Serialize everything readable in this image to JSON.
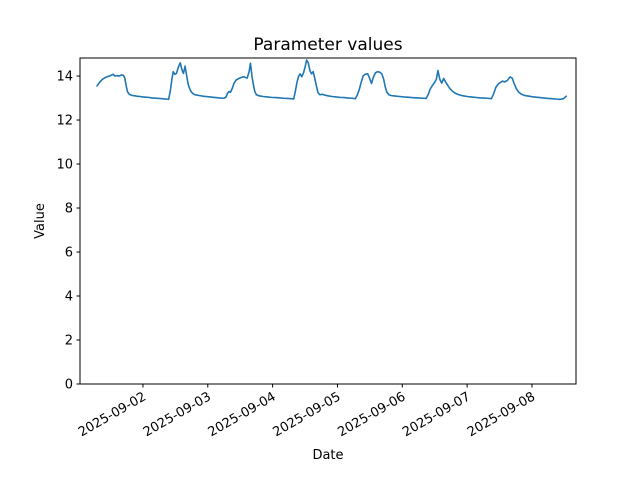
{
  "chart_data": {
    "type": "line",
    "title": "Parameter values",
    "xlabel": "Date",
    "ylabel": "Value",
    "legend": "none",
    "grid": false,
    "background_color": "#ffffff",
    "line_color": "#1f77b4",
    "axis_color": "#000000",
    "x_unit": "hours since 2025-09-01 00:00",
    "xlim": [
      0.7,
      184.3
    ],
    "ylim": [
      0,
      14.82
    ],
    "y_ticks": [
      0,
      2,
      4,
      6,
      8,
      10,
      12,
      14
    ],
    "x_ticks": [
      {
        "t": 24,
        "label": "2025-09-02"
      },
      {
        "t": 48,
        "label": "2025-09-03"
      },
      {
        "t": 72,
        "label": "2025-09-04"
      },
      {
        "t": 96,
        "label": "2025-09-05"
      },
      {
        "t": 120,
        "label": "2025-09-06"
      },
      {
        "t": 144,
        "label": "2025-09-07"
      },
      {
        "t": 168,
        "label": "2025-09-08"
      }
    ],
    "x_tick_label_rotation_deg": 30,
    "series": [
      {
        "name": "Parameter values",
        "points": [
          [
            7,
            13.55
          ],
          [
            8,
            13.72
          ],
          [
            9,
            13.85
          ],
          [
            10,
            13.93
          ],
          [
            11,
            13.98
          ],
          [
            12,
            14.02
          ],
          [
            13,
            14.08
          ],
          [
            13.6,
            14.0
          ],
          [
            14.4,
            14.02
          ],
          [
            15.2,
            14.0
          ],
          [
            16,
            14.05
          ],
          [
            16.8,
            14.03
          ],
          [
            17.3,
            13.9
          ],
          [
            17.8,
            13.55
          ],
          [
            18.3,
            13.28
          ],
          [
            19,
            13.16
          ],
          [
            20,
            13.12
          ],
          [
            21,
            13.1
          ],
          [
            22,
            13.08
          ],
          [
            23,
            13.07
          ],
          [
            24,
            13.05
          ],
          [
            25,
            13.04
          ],
          [
            26,
            13.03
          ],
          [
            27,
            13.01
          ],
          [
            28,
            13.0
          ],
          [
            29,
            12.99
          ],
          [
            30,
            12.98
          ],
          [
            31,
            12.97
          ],
          [
            32,
            12.96
          ],
          [
            33,
            12.95
          ],
          [
            33.5,
            12.94
          ],
          [
            34.1,
            13.3
          ],
          [
            34.7,
            13.85
          ],
          [
            35.2,
            14.2
          ],
          [
            35.8,
            14.08
          ],
          [
            36.4,
            14.12
          ],
          [
            37.1,
            14.4
          ],
          [
            37.8,
            14.6
          ],
          [
            38.4,
            14.3
          ],
          [
            39,
            14.12
          ],
          [
            39.6,
            14.45
          ],
          [
            40.2,
            14.0
          ],
          [
            40.7,
            13.65
          ],
          [
            41.3,
            13.42
          ],
          [
            41.9,
            13.28
          ],
          [
            42.7,
            13.18
          ],
          [
            43.6,
            13.14
          ],
          [
            45,
            13.11
          ],
          [
            46.5,
            13.08
          ],
          [
            48,
            13.06
          ],
          [
            49.5,
            13.04
          ],
          [
            51,
            13.02
          ],
          [
            52.5,
            13.0
          ],
          [
            54,
            12.99
          ],
          [
            54.8,
            13.05
          ],
          [
            55.3,
            13.22
          ],
          [
            55.9,
            13.3
          ],
          [
            56.4,
            13.26
          ],
          [
            57.1,
            13.45
          ],
          [
            57.7,
            13.67
          ],
          [
            58.5,
            13.82
          ],
          [
            59.5,
            13.89
          ],
          [
            60.5,
            13.94
          ],
          [
            61.3,
            13.97
          ],
          [
            62,
            13.93
          ],
          [
            62.6,
            13.91
          ],
          [
            63.3,
            14.2
          ],
          [
            63.8,
            14.58
          ],
          [
            64.4,
            13.95
          ],
          [
            64.9,
            13.59
          ],
          [
            65.4,
            13.3
          ],
          [
            66,
            13.15
          ],
          [
            67,
            13.1
          ],
          [
            68.5,
            13.07
          ],
          [
            70,
            13.05
          ],
          [
            71.5,
            13.03
          ],
          [
            73,
            13.02
          ],
          [
            74.5,
            13.01
          ],
          [
            76,
            12.99
          ],
          [
            77.5,
            12.98
          ],
          [
            79,
            12.97
          ],
          [
            79.8,
            12.96
          ],
          [
            80.4,
            13.3
          ],
          [
            81,
            13.7
          ],
          [
            81.6,
            13.98
          ],
          [
            82.2,
            14.1
          ],
          [
            82.8,
            13.97
          ],
          [
            83.4,
            14.13
          ],
          [
            84,
            14.4
          ],
          [
            84.6,
            14.73
          ],
          [
            85.2,
            14.6
          ],
          [
            85.8,
            14.25
          ],
          [
            86.4,
            14.1
          ],
          [
            87,
            14.2
          ],
          [
            87.6,
            13.9
          ],
          [
            88.2,
            13.55
          ],
          [
            88.8,
            13.25
          ],
          [
            89.5,
            13.15
          ],
          [
            90.4,
            13.17
          ],
          [
            91.4,
            13.13
          ],
          [
            92.5,
            13.1
          ],
          [
            94,
            13.07
          ],
          [
            95.5,
            13.05
          ],
          [
            97,
            13.03
          ],
          [
            98.5,
            13.02
          ],
          [
            100,
            13.0
          ],
          [
            101.5,
            12.99
          ],
          [
            102.6,
            12.97
          ],
          [
            103.4,
            13.15
          ],
          [
            104.1,
            13.4
          ],
          [
            104.8,
            13.72
          ],
          [
            105.5,
            14.0
          ],
          [
            106.2,
            14.08
          ],
          [
            107.2,
            14.1
          ],
          [
            107.9,
            13.9
          ],
          [
            108.6,
            13.66
          ],
          [
            109.3,
            13.95
          ],
          [
            110.1,
            14.15
          ],
          [
            110.9,
            14.2
          ],
          [
            111.7,
            14.17
          ],
          [
            112.4,
            14.1
          ],
          [
            113.1,
            13.86
          ],
          [
            113.7,
            13.5
          ],
          [
            114.3,
            13.27
          ],
          [
            115,
            13.15
          ],
          [
            116,
            13.11
          ],
          [
            117.5,
            13.09
          ],
          [
            119,
            13.07
          ],
          [
            120.5,
            13.05
          ],
          [
            122,
            13.04
          ],
          [
            123.5,
            13.02
          ],
          [
            125,
            13.01
          ],
          [
            126.5,
            13.0
          ],
          [
            128,
            12.99
          ],
          [
            128.8,
            12.98
          ],
          [
            129.6,
            13.16
          ],
          [
            130.3,
            13.4
          ],
          [
            131.1,
            13.56
          ],
          [
            131.9,
            13.7
          ],
          [
            132.6,
            13.85
          ],
          [
            133.2,
            14.25
          ],
          [
            133.9,
            13.85
          ],
          [
            134.6,
            13.68
          ],
          [
            135.3,
            13.89
          ],
          [
            136.1,
            13.72
          ],
          [
            136.9,
            13.56
          ],
          [
            137.7,
            13.42
          ],
          [
            138.6,
            13.31
          ],
          [
            139.6,
            13.22
          ],
          [
            141,
            13.15
          ],
          [
            142.5,
            13.1
          ],
          [
            144,
            13.07
          ],
          [
            145.5,
            13.05
          ],
          [
            147,
            13.03
          ],
          [
            148.5,
            13.01
          ],
          [
            150,
            13.0
          ],
          [
            151.5,
            12.99
          ],
          [
            153,
            12.97
          ],
          [
            153.9,
            13.22
          ],
          [
            154.6,
            13.48
          ],
          [
            155.4,
            13.62
          ],
          [
            156.2,
            13.7
          ],
          [
            157.1,
            13.77
          ],
          [
            157.9,
            13.73
          ],
          [
            158.9,
            13.8
          ],
          [
            159.9,
            13.96
          ],
          [
            160.7,
            13.9
          ],
          [
            161.4,
            13.66
          ],
          [
            162.2,
            13.43
          ],
          [
            163,
            13.28
          ],
          [
            164,
            13.18
          ],
          [
            165.2,
            13.12
          ],
          [
            166.6,
            13.09
          ],
          [
            168,
            13.06
          ],
          [
            169.5,
            13.04
          ],
          [
            171,
            13.02
          ],
          [
            172.5,
            13.0
          ],
          [
            174,
            12.98
          ],
          [
            175.5,
            12.97
          ],
          [
            177,
            12.95
          ],
          [
            178.5,
            12.94
          ],
          [
            179.6,
            12.97
          ],
          [
            180.7,
            13.08
          ]
        ]
      }
    ]
  }
}
